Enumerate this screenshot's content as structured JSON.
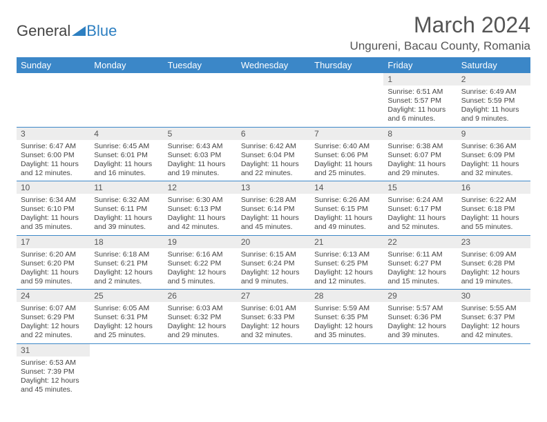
{
  "logo": {
    "text_left": "General",
    "text_right": "Blue",
    "color_left": "#444444",
    "color_right": "#2d7fc1"
  },
  "header": {
    "month": "March 2024",
    "location": "Ungureni, Bacau County, Romania"
  },
  "style": {
    "header_bg": "#3b87c8",
    "header_fg": "#ffffff",
    "daynum_bg": "#ededed",
    "row_divider": "#3b87c8",
    "text_color": "#444444"
  },
  "weekdays": [
    "Sunday",
    "Monday",
    "Tuesday",
    "Wednesday",
    "Thursday",
    "Friday",
    "Saturday"
  ],
  "weeks": [
    [
      null,
      null,
      null,
      null,
      null,
      {
        "n": "1",
        "sr": "6:51 AM",
        "ss": "5:57 PM",
        "dl": "11 hours and 6 minutes."
      },
      {
        "n": "2",
        "sr": "6:49 AM",
        "ss": "5:59 PM",
        "dl": "11 hours and 9 minutes."
      }
    ],
    [
      {
        "n": "3",
        "sr": "6:47 AM",
        "ss": "6:00 PM",
        "dl": "11 hours and 12 minutes."
      },
      {
        "n": "4",
        "sr": "6:45 AM",
        "ss": "6:01 PM",
        "dl": "11 hours and 16 minutes."
      },
      {
        "n": "5",
        "sr": "6:43 AM",
        "ss": "6:03 PM",
        "dl": "11 hours and 19 minutes."
      },
      {
        "n": "6",
        "sr": "6:42 AM",
        "ss": "6:04 PM",
        "dl": "11 hours and 22 minutes."
      },
      {
        "n": "7",
        "sr": "6:40 AM",
        "ss": "6:06 PM",
        "dl": "11 hours and 25 minutes."
      },
      {
        "n": "8",
        "sr": "6:38 AM",
        "ss": "6:07 PM",
        "dl": "11 hours and 29 minutes."
      },
      {
        "n": "9",
        "sr": "6:36 AM",
        "ss": "6:09 PM",
        "dl": "11 hours and 32 minutes."
      }
    ],
    [
      {
        "n": "10",
        "sr": "6:34 AM",
        "ss": "6:10 PM",
        "dl": "11 hours and 35 minutes."
      },
      {
        "n": "11",
        "sr": "6:32 AM",
        "ss": "6:11 PM",
        "dl": "11 hours and 39 minutes."
      },
      {
        "n": "12",
        "sr": "6:30 AM",
        "ss": "6:13 PM",
        "dl": "11 hours and 42 minutes."
      },
      {
        "n": "13",
        "sr": "6:28 AM",
        "ss": "6:14 PM",
        "dl": "11 hours and 45 minutes."
      },
      {
        "n": "14",
        "sr": "6:26 AM",
        "ss": "6:15 PM",
        "dl": "11 hours and 49 minutes."
      },
      {
        "n": "15",
        "sr": "6:24 AM",
        "ss": "6:17 PM",
        "dl": "11 hours and 52 minutes."
      },
      {
        "n": "16",
        "sr": "6:22 AM",
        "ss": "6:18 PM",
        "dl": "11 hours and 55 minutes."
      }
    ],
    [
      {
        "n": "17",
        "sr": "6:20 AM",
        "ss": "6:20 PM",
        "dl": "11 hours and 59 minutes."
      },
      {
        "n": "18",
        "sr": "6:18 AM",
        "ss": "6:21 PM",
        "dl": "12 hours and 2 minutes."
      },
      {
        "n": "19",
        "sr": "6:16 AM",
        "ss": "6:22 PM",
        "dl": "12 hours and 5 minutes."
      },
      {
        "n": "20",
        "sr": "6:15 AM",
        "ss": "6:24 PM",
        "dl": "12 hours and 9 minutes."
      },
      {
        "n": "21",
        "sr": "6:13 AM",
        "ss": "6:25 PM",
        "dl": "12 hours and 12 minutes."
      },
      {
        "n": "22",
        "sr": "6:11 AM",
        "ss": "6:27 PM",
        "dl": "12 hours and 15 minutes."
      },
      {
        "n": "23",
        "sr": "6:09 AM",
        "ss": "6:28 PM",
        "dl": "12 hours and 19 minutes."
      }
    ],
    [
      {
        "n": "24",
        "sr": "6:07 AM",
        "ss": "6:29 PM",
        "dl": "12 hours and 22 minutes."
      },
      {
        "n": "25",
        "sr": "6:05 AM",
        "ss": "6:31 PM",
        "dl": "12 hours and 25 minutes."
      },
      {
        "n": "26",
        "sr": "6:03 AM",
        "ss": "6:32 PM",
        "dl": "12 hours and 29 minutes."
      },
      {
        "n": "27",
        "sr": "6:01 AM",
        "ss": "6:33 PM",
        "dl": "12 hours and 32 minutes."
      },
      {
        "n": "28",
        "sr": "5:59 AM",
        "ss": "6:35 PM",
        "dl": "12 hours and 35 minutes."
      },
      {
        "n": "29",
        "sr": "5:57 AM",
        "ss": "6:36 PM",
        "dl": "12 hours and 39 minutes."
      },
      {
        "n": "30",
        "sr": "5:55 AM",
        "ss": "6:37 PM",
        "dl": "12 hours and 42 minutes."
      }
    ],
    [
      {
        "n": "31",
        "sr": "6:53 AM",
        "ss": "7:39 PM",
        "dl": "12 hours and 45 minutes."
      },
      null,
      null,
      null,
      null,
      null,
      null
    ]
  ],
  "labels": {
    "sunrise": "Sunrise:",
    "sunset": "Sunset:",
    "daylight": "Daylight:"
  }
}
